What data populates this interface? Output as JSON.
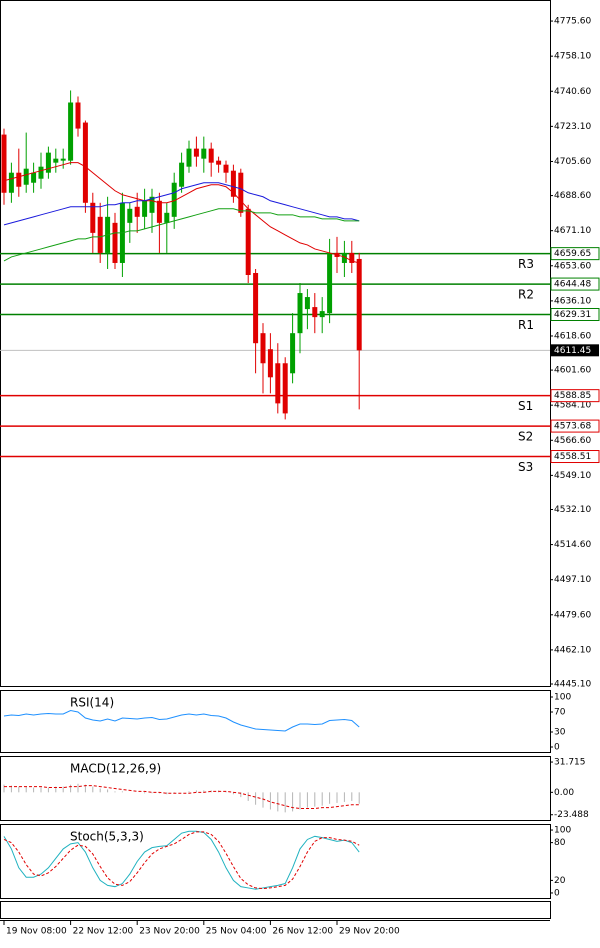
{
  "chart_data": [
    {
      "type": "candlestick",
      "categories": [
        "19 Nov 08:00",
        null,
        null,
        null,
        null,
        null,
        null,
        null,
        null,
        "22 Nov 12:00",
        null,
        null,
        null,
        null,
        null,
        null,
        null,
        null,
        "23 Nov 20:00",
        null,
        null,
        null,
        null,
        null,
        null,
        null,
        null,
        "25 Nov 04:00",
        null,
        null,
        null,
        null,
        null,
        null,
        null,
        null,
        "26 Nov 12:00",
        null,
        null,
        null,
        null,
        null,
        null,
        null,
        null,
        "29 Nov 20:00",
        null,
        null,
        null
      ],
      "open": [
        4719,
        4690,
        4700,
        4694,
        4695,
        4697,
        4700,
        4705,
        4706,
        4706,
        4735,
        4725,
        4685,
        4678,
        4660,
        4675,
        4655,
        4675,
        4683,
        4678,
        4680,
        4686,
        4675,
        4678,
        4693,
        4703,
        4712,
        4707,
        4712,
        4706,
        4704,
        4701,
        4700,
        4682,
        4650,
        4620,
        4612,
        4605,
        4605,
        4600,
        4620,
        4632,
        4633,
        4628,
        4630,
        4660,
        4655,
        4660,
        4657
      ],
      "high": [
        4722,
        4705,
        4712,
        4720,
        4705,
        4710,
        4713,
        4712,
        4712,
        4741,
        4738,
        4726,
        4690,
        4685,
        4688,
        4680,
        4690,
        4685,
        4690,
        4692,
        4692,
        4690,
        4685,
        4700,
        4710,
        4716,
        4718,
        4718,
        4715,
        4708,
        4706,
        4704,
        4702,
        4684,
        4652,
        4625,
        4620,
        4615,
        4608,
        4630,
        4645,
        4642,
        4640,
        4638,
        4667,
        4668,
        4666,
        4666,
        4660
      ],
      "low": [
        4684,
        4685,
        4688,
        4690,
        4690,
        4692,
        4697,
        4700,
        4702,
        4704,
        4718,
        4680,
        4660,
        4655,
        4652,
        4652,
        4648,
        4665,
        4670,
        4672,
        4670,
        4660,
        4660,
        4672,
        4690,
        4700,
        4703,
        4700,
        4698,
        4700,
        4695,
        4685,
        4678,
        4645,
        4600,
        4590,
        4590,
        4580,
        4577,
        4595,
        4610,
        4622,
        4620,
        4620,
        4625,
        4650,
        4648,
        4650,
        4582
      ],
      "close": [
        4690,
        4700,
        4693,
        4702,
        4700,
        4703,
        4710,
        4707,
        4707,
        4735,
        4722,
        4685,
        4670,
        4660,
        4678,
        4655,
        4685,
        4682,
        4678,
        4686,
        4688,
        4675,
        4680,
        4695,
        4705,
        4712,
        4708,
        4712,
        4705,
        4704,
        4700,
        4688,
        4680,
        4649,
        4615,
        4605,
        4598,
        4585,
        4580,
        4620,
        4640,
        4638,
        4628,
        4631,
        4660,
        4658,
        4660,
        4655,
        4611.45
      ],
      "up_color": "#00a000",
      "down_color": "#e00000",
      "series": [
        {
          "color": "#e00000",
          "values": [
            4696,
            4697,
            4698,
            4699,
            4700,
            4701,
            4702,
            4703,
            4704,
            4705,
            4705,
            4703,
            4700,
            4697,
            4694,
            4691,
            4689,
            4688,
            4687,
            4686,
            4686,
            4685,
            4685,
            4686,
            4688,
            4690,
            4692,
            4693,
            4694,
            4694,
            4693,
            4690,
            4686,
            4682,
            4679,
            4676,
            4673,
            4671,
            4669,
            4667,
            4665,
            4664,
            4662,
            4661,
            4660,
            4659,
            4658,
            4656,
            4655
          ]
        },
        {
          "color": "#1a1adc",
          "values": [
            4674,
            4675,
            4676,
            4677,
            4678,
            4679,
            4680,
            4681,
            4682,
            4683,
            4683,
            4683,
            4683,
            4683,
            4684,
            4684,
            4685,
            4685,
            4686,
            4686,
            4687,
            4688,
            4689,
            4690,
            4692,
            4693,
            4694,
            4695,
            4695,
            4695,
            4694,
            4693,
            4692,
            4690,
            4689,
            4688,
            4686,
            4685,
            4684,
            4683,
            4682,
            4681,
            4680,
            4679,
            4678,
            4678,
            4677,
            4677,
            4676
          ]
        },
        {
          "color": "#13a013",
          "values": [
            4656,
            4658,
            4659,
            4660,
            4661,
            4662,
            4663,
            4664,
            4665,
            4666,
            4667,
            4667,
            4668,
            4668,
            4669,
            4670,
            4670,
            4671,
            4671,
            4672,
            4673,
            4674,
            4675,
            4676,
            4677,
            4678,
            4679,
            4680,
            4681,
            4682,
            4682,
            4682,
            4681,
            4681,
            4680,
            4680,
            4680,
            4679,
            4679,
            4679,
            4678,
            4678,
            4678,
            4677,
            4677,
            4677,
            4676,
            4676,
            4676
          ]
        }
      ],
      "levels": [
        {
          "name": "R3",
          "value": 4659.65,
          "color": "#008000"
        },
        {
          "name": "R2",
          "value": 4644.48,
          "color": "#008000"
        },
        {
          "name": "R1",
          "value": 4629.31,
          "color": "#008000"
        },
        {
          "name": "S1",
          "value": 4588.85,
          "color": "#e00000"
        },
        {
          "name": "S2",
          "value": 4573.68,
          "color": "#e00000"
        },
        {
          "name": "S3",
          "value": 4558.51,
          "color": "#e00000"
        }
      ],
      "current_price": 4611.45,
      "ylim": [
        4444.1,
        4785.6
      ],
      "yticks": [
        {
          "value": 4775.6,
          "label": "4775.60"
        },
        {
          "value": 4758.1,
          "label": "4758.10"
        },
        {
          "value": 4740.6,
          "label": "4740.60"
        },
        {
          "value": 4723.1,
          "label": "4723.10"
        },
        {
          "value": 4705.6,
          "label": "4705.60"
        },
        {
          "value": 4688.6,
          "label": "4688.60"
        },
        {
          "value": 4671.1,
          "label": "4671.10"
        },
        {
          "value": 4653.6,
          "label": "4653.60"
        },
        {
          "value": 4636.1,
          "label": "4636.10"
        },
        {
          "value": 4618.6,
          "label": "4618.60"
        },
        {
          "value": 4601.6,
          "label": "4601.60"
        },
        {
          "value": 4584.1,
          "label": "4584.10"
        },
        {
          "value": 4566.6,
          "label": "4566.60"
        },
        {
          "value": 4549.1,
          "label": "4549.10"
        },
        {
          "value": 4532.1,
          "label": "4532.10"
        },
        {
          "value": 4514.6,
          "label": "4514.60"
        },
        {
          "value": 4497.1,
          "label": "4497.10"
        },
        {
          "value": 4479.6,
          "label": "4479.60"
        },
        {
          "value": 4462.1,
          "label": "4462.10"
        },
        {
          "value": 4445.1,
          "label": "4445.10"
        }
      ],
      "grid": true
    },
    {
      "type": "line",
      "title": "RSI(14)",
      "ylim": [
        -10,
        112
      ],
      "yticks": [
        100,
        70,
        30,
        0
      ],
      "series": [
        {
          "color": "#1e90ff",
          "dash": false,
          "values": [
            62,
            64,
            63,
            66,
            64,
            66,
            67,
            66,
            66,
            73,
            70,
            58,
            54,
            52,
            56,
            52,
            58,
            57,
            56,
            58,
            59,
            55,
            56,
            60,
            64,
            66,
            64,
            66,
            63,
            62,
            58,
            50,
            44,
            40,
            36,
            35,
            34,
            33,
            32,
            40,
            46,
            46,
            45,
            46,
            53,
            54,
            55,
            53,
            40
          ]
        }
      ]
    },
    {
      "type": "bar",
      "title": "MACD(12,26,9)",
      "ylim": [
        -29,
        37
      ],
      "yticks": [
        31.715,
        {
          "value": 0,
          "label": "0.00"
        },
        -23.488
      ],
      "series": [
        {
          "color": "#b4b4b4",
          "dash": false,
          "values": [
            8,
            7,
            6,
            6,
            5,
            5,
            5,
            6,
            6,
            8,
            9,
            8,
            6,
            4,
            3,
            1,
            1,
            0,
            0,
            -1,
            -1,
            -1,
            -2,
            -1,
            0,
            1,
            2,
            2,
            2,
            2,
            1,
            -2,
            -5,
            -9,
            -13,
            -16,
            -18,
            -20,
            -21,
            -20,
            -18,
            -16,
            -15,
            -14,
            -12,
            -11,
            -10,
            -9,
            -12
          ]
        },
        {
          "color": "#e00000",
          "dash": true,
          "values": [
            6,
            6,
            6,
            6,
            6,
            6,
            5,
            5,
            5,
            6,
            6,
            7,
            7,
            6,
            5,
            4,
            3,
            2,
            1,
            1,
            0,
            0,
            -1,
            -1,
            -1,
            -1,
            0,
            0,
            1,
            1,
            1,
            0,
            -1,
            -3,
            -5,
            -7,
            -10,
            -12,
            -14,
            -16,
            -17,
            -17,
            -17,
            -16,
            -16,
            -15,
            -14,
            -13,
            -13
          ]
        }
      ]
    },
    {
      "type": "line",
      "title": "Stoch(5,3,3)",
      "ylim": [
        -8,
        108
      ],
      "yticks": [
        100,
        80,
        20,
        0
      ],
      "series": [
        {
          "color": "#20b2c0",
          "dash": false,
          "values": [
            90,
            70,
            40,
            25,
            25,
            30,
            40,
            55,
            70,
            78,
            80,
            65,
            40,
            20,
            12,
            10,
            15,
            30,
            50,
            65,
            72,
            74,
            75,
            85,
            95,
            98,
            98,
            96,
            85,
            65,
            40,
            20,
            10,
            8,
            6,
            8,
            10,
            12,
            15,
            40,
            70,
            85,
            90,
            88,
            85,
            82,
            84,
            80,
            65
          ]
        },
        {
          "color": "#e00000",
          "dash": true,
          "values": [
            85,
            80,
            65,
            45,
            30,
            27,
            32,
            42,
            55,
            68,
            76,
            74,
            62,
            42,
            24,
            14,
            12,
            18,
            32,
            48,
            62,
            70,
            74,
            78,
            85,
            93,
            97,
            97,
            93,
            82,
            63,
            42,
            23,
            13,
            8,
            7,
            8,
            10,
            12,
            22,
            42,
            65,
            82,
            88,
            88,
            85,
            84,
            82,
            76
          ]
        }
      ]
    }
  ]
}
